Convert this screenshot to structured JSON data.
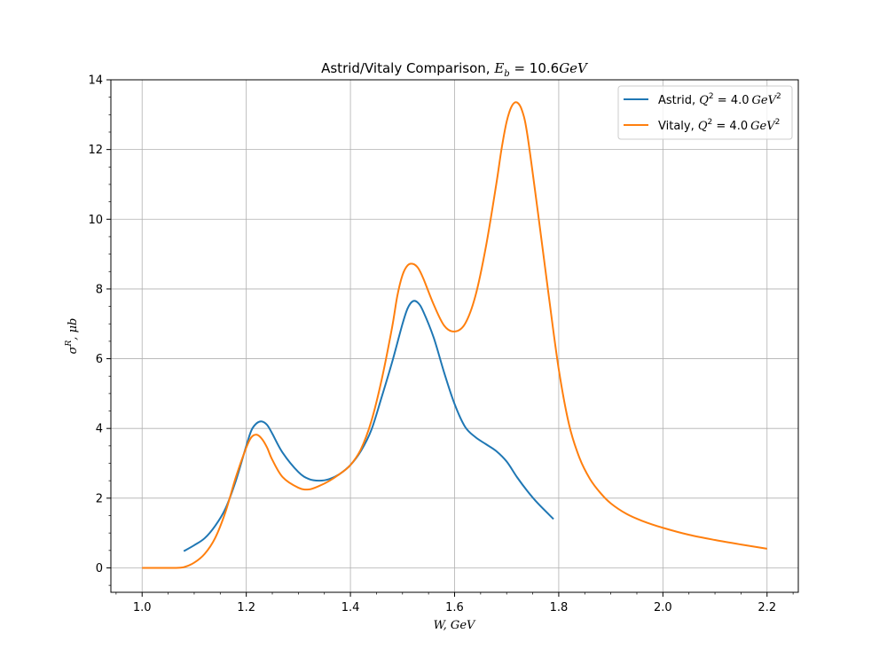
{
  "chart_data": {
    "type": "line",
    "title": {
      "prefix": "Astrid/Vitaly Comparison, ",
      "math_var": "E",
      "math_sub": "b",
      "math_rest": " = 10.6",
      "math_unit": "GeV"
    },
    "xlabel": "W, GeV",
    "ylabel": "σ",
    "ylabel_sup": "R",
    "ylabel_rest": ", μb",
    "xlim": [
      0.94,
      2.26
    ],
    "ylim": [
      -0.7,
      14
    ],
    "xticks": [
      1.0,
      1.2,
      1.4,
      1.6,
      1.8,
      2.0,
      2.2
    ],
    "xtick_labels": [
      "1.0",
      "1.2",
      "1.4",
      "1.6",
      "1.8",
      "2.0",
      "2.2"
    ],
    "yticks": [
      0,
      2,
      4,
      6,
      8,
      10,
      12,
      14
    ],
    "ytick_labels": [
      "0",
      "2",
      "4",
      "6",
      "8",
      "10",
      "12",
      "14"
    ],
    "grid": true,
    "legend_position": "top-right",
    "series": [
      {
        "name": "Astrid, ",
        "legend_math": {
          "var": "Q",
          "sup": "2",
          "rest": " = 4.0",
          "unit": "GeV",
          "unit_sup": "2"
        },
        "color": "#1f77b4",
        "x": [
          1.08,
          1.1,
          1.12,
          1.14,
          1.16,
          1.18,
          1.2,
          1.21,
          1.22,
          1.23,
          1.24,
          1.25,
          1.27,
          1.3,
          1.32,
          1.34,
          1.36,
          1.38,
          1.4,
          1.42,
          1.44,
          1.46,
          1.48,
          1.5,
          1.51,
          1.52,
          1.53,
          1.54,
          1.56,
          1.58,
          1.6,
          1.62,
          1.64,
          1.66,
          1.68,
          1.7,
          1.72,
          1.74,
          1.76,
          1.79
        ],
        "y": [
          0.48,
          0.65,
          0.85,
          1.2,
          1.7,
          2.5,
          3.5,
          3.95,
          4.15,
          4.2,
          4.1,
          3.85,
          3.3,
          2.75,
          2.55,
          2.5,
          2.55,
          2.7,
          2.95,
          3.35,
          3.95,
          4.9,
          5.9,
          7.0,
          7.45,
          7.65,
          7.6,
          7.35,
          6.6,
          5.6,
          4.7,
          4.05,
          3.75,
          3.55,
          3.35,
          3.05,
          2.6,
          2.2,
          1.85,
          1.4
        ]
      },
      {
        "name": "Vitaly, ",
        "legend_math": {
          "var": "Q",
          "sup": "2",
          "rest": " = 4.0",
          "unit": "GeV",
          "unit_sup": "2"
        },
        "color": "#ff7f0e",
        "x": [
          1.0,
          1.02,
          1.04,
          1.06,
          1.08,
          1.1,
          1.12,
          1.14,
          1.16,
          1.18,
          1.2,
          1.21,
          1.22,
          1.23,
          1.24,
          1.25,
          1.27,
          1.3,
          1.32,
          1.34,
          1.36,
          1.38,
          1.4,
          1.42,
          1.44,
          1.46,
          1.48,
          1.49,
          1.5,
          1.51,
          1.52,
          1.53,
          1.54,
          1.56,
          1.58,
          1.6,
          1.62,
          1.64,
          1.66,
          1.68,
          1.69,
          1.7,
          1.71,
          1.72,
          1.73,
          1.74,
          1.76,
          1.78,
          1.8,
          1.82,
          1.84,
          1.86,
          1.88,
          1.9,
          1.93,
          1.96,
          2.0,
          2.05,
          2.1,
          2.15,
          2.2
        ],
        "y": [
          0,
          0,
          0,
          0,
          0.02,
          0.15,
          0.4,
          0.85,
          1.6,
          2.6,
          3.45,
          3.75,
          3.82,
          3.7,
          3.45,
          3.1,
          2.6,
          2.3,
          2.25,
          2.35,
          2.5,
          2.7,
          2.95,
          3.4,
          4.2,
          5.4,
          6.9,
          7.8,
          8.4,
          8.68,
          8.72,
          8.6,
          8.3,
          7.55,
          6.95,
          6.78,
          7.0,
          7.8,
          9.2,
          11.0,
          12.0,
          12.8,
          13.25,
          13.35,
          13.1,
          12.4,
          10.2,
          7.9,
          5.7,
          4.1,
          3.15,
          2.55,
          2.15,
          1.85,
          1.55,
          1.35,
          1.15,
          0.95,
          0.8,
          0.67,
          0.55
        ]
      }
    ]
  }
}
